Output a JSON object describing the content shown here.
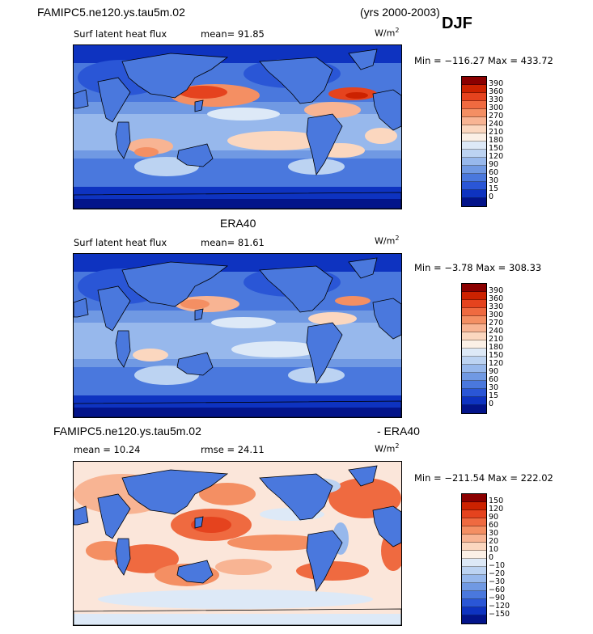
{
  "header": {
    "case_name": "FAMIPC5.ne120.ys.tau5m.02",
    "years": "(yrs 2000-2003)",
    "season": "DJF"
  },
  "panels": [
    {
      "id": "model",
      "subtitle": "Surf latent heat flux",
      "mean_label": "mean=  91.85",
      "units_base": "W/m",
      "units_exp": "2",
      "minmax": "Min = −116.27 Max = 433.72",
      "palette": "seq"
    },
    {
      "id": "obs",
      "title": "ERA40",
      "subtitle": "Surf latent heat flux",
      "mean_label": "mean=  81.61",
      "units_base": "W/m",
      "units_exp": "2",
      "minmax": "Min =  −3.78 Max = 308.33",
      "palette": "seq"
    },
    {
      "id": "diff",
      "title_left": "FAMIPC5.ne120.ys.tau5m.02",
      "title_right": "- ERA40",
      "mean_label": "mean =  10.24",
      "rmse_label": "rmse =  24.11",
      "units_base": "W/m",
      "units_exp": "2",
      "minmax": "Min = −211.54 Max = 222.02",
      "palette": "div"
    }
  ],
  "colorbars": {
    "seq": {
      "labels": [
        "390",
        "360",
        "330",
        "300",
        "270",
        "240",
        "210",
        "180",
        "150",
        "120",
        "90",
        "60",
        "30",
        "15",
        "0"
      ],
      "colors": [
        "#8b0000",
        "#cc2200",
        "#e5431e",
        "#ef6a40",
        "#f48f63",
        "#f8b493",
        "#fbd7bf",
        "#fbf0e6",
        "#dde9f7",
        "#bcd3f2",
        "#97b8ec",
        "#7099e3",
        "#4a78dd",
        "#2a56d6",
        "#0e33c0",
        "#03148a"
      ]
    },
    "div": {
      "labels": [
        "150",
        "120",
        "90",
        "60",
        "30",
        "20",
        "10",
        "0",
        "−10",
        "−20",
        "−30",
        "−60",
        "−90",
        "−120",
        "−150"
      ],
      "colors": [
        "#8b0000",
        "#cc2200",
        "#e5431e",
        "#ef6a40",
        "#f48f63",
        "#f8b493",
        "#fbd7bf",
        "#fbf0e6",
        "#dde9f7",
        "#bcd3f2",
        "#97b8ec",
        "#7099e3",
        "#4a78dd",
        "#2a56d6",
        "#0e33c0",
        "#03148a"
      ]
    }
  }
}
